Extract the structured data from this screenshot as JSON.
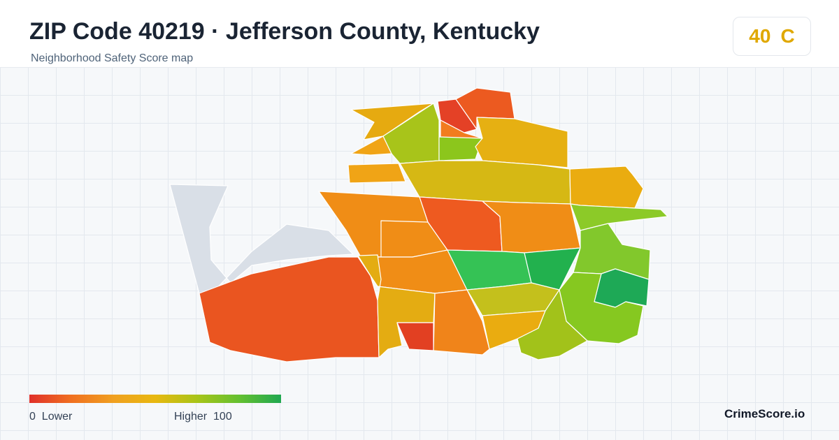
{
  "header": {
    "title": "ZIP Code 40219 · Jefferson County, Kentucky",
    "subtitle": "Neighborhood Safety Score map"
  },
  "score": {
    "value": "40",
    "grade": "C",
    "color": "#e0a800"
  },
  "legend": {
    "min_value": "0",
    "min_label": "Lower",
    "max_label": "Higher",
    "max_value": "100",
    "colors": [
      "#e0302a",
      "#f07020",
      "#f0a020",
      "#e8b810",
      "#a8c418",
      "#64c030",
      "#20a850"
    ]
  },
  "map": {
    "outside_area_color": "#d9dfe7",
    "border_color": "#ffffff"
  },
  "brand": "CrimeScore.io"
}
